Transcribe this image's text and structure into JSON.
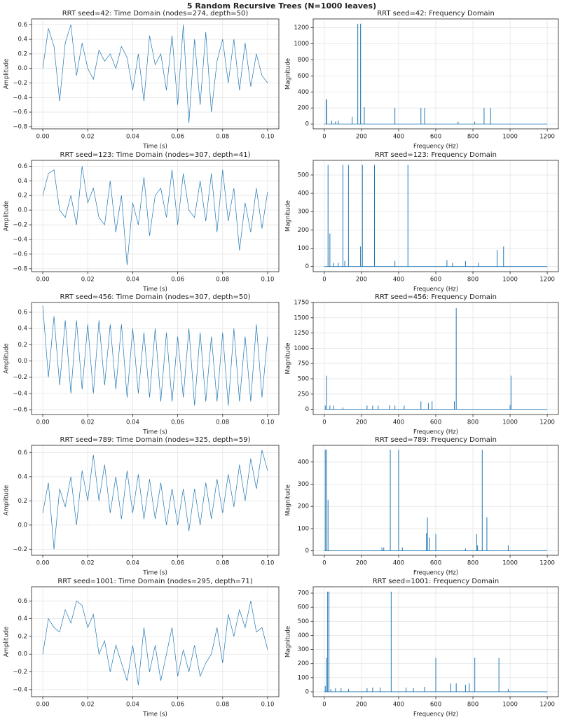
{
  "title": "5 Random Recursive Trees (N=1000 leaves)",
  "chart_data": [
    {
      "type": "line",
      "title": "RRT seed=42: Time Domain (nodes=274, depth=50)",
      "xlabel": "Time (s)",
      "ylabel": "Amplitude",
      "color": "#1f77b4",
      "grid": true,
      "x": [
        0,
        0.0025,
        0.005,
        0.0075,
        0.01,
        0.0125,
        0.015,
        0.0175,
        0.02,
        0.0225,
        0.025,
        0.0275,
        0.03,
        0.0325,
        0.035,
        0.0375,
        0.04,
        0.0425,
        0.045,
        0.0475,
        0.05,
        0.0525,
        0.055,
        0.0575,
        0.06,
        0.0625,
        0.065,
        0.0675,
        0.07,
        0.0725,
        0.075,
        0.0775,
        0.08,
        0.0825,
        0.085,
        0.0875,
        0.09,
        0.0925,
        0.095,
        0.0975,
        0.1
      ],
      "values": [
        0.0,
        0.55,
        0.3,
        -0.45,
        0.35,
        0.6,
        -0.1,
        0.35,
        0.0,
        -0.15,
        0.25,
        0.1,
        0.2,
        0.0,
        0.3,
        0.15,
        -0.3,
        0.2,
        -0.45,
        0.45,
        0.05,
        0.2,
        -0.3,
        0.45,
        -0.5,
        0.6,
        -0.75,
        0.4,
        -0.5,
        0.5,
        -0.6,
        0.1,
        0.4,
        -0.2,
        0.4,
        -0.3,
        0.35,
        -0.25,
        0.2,
        -0.1,
        -0.2
      ],
      "xlim": [
        -0.005,
        0.105
      ],
      "ylim": [
        -0.83,
        0.68
      ],
      "xticks": [
        {
          "value": 0,
          "label": "0.00"
        },
        {
          "value": 0.02,
          "label": "0.02"
        },
        {
          "value": 0.04,
          "label": "0.04"
        },
        {
          "value": 0.06,
          "label": "0.06"
        },
        {
          "value": 0.08,
          "label": "0.08"
        },
        {
          "value": 0.1,
          "label": "0.10"
        }
      ],
      "yticks": [
        {
          "value": -0.8,
          "label": "−0.8"
        },
        {
          "value": -0.6,
          "label": "−0.6"
        },
        {
          "value": -0.4,
          "label": "−0.4"
        },
        {
          "value": -0.2,
          "label": "−0.2"
        },
        {
          "value": 0,
          "label": "0.0"
        },
        0.2,
        0.4,
        0.6
      ]
    },
    {
      "type": "stem",
      "title": "RRT seed=42: Frequency Domain",
      "xlabel": "Frequency (Hz)",
      "ylabel": "Magnitude",
      "color": "#1f77b4",
      "grid": true,
      "x": [
        0,
        10,
        12,
        40,
        60,
        75,
        150,
        180,
        195,
        215,
        380,
        520,
        540,
        720,
        810,
        860,
        895,
        1200
      ],
      "values": [
        0,
        310,
        300,
        40,
        30,
        40,
        90,
        1250,
        1250,
        210,
        200,
        200,
        200,
        30,
        30,
        200,
        200,
        0
      ],
      "xlim": [
        -60,
        1260
      ],
      "ylim": [
        -60,
        1310
      ],
      "xticks": [
        0,
        200,
        400,
        600,
        800,
        1000,
        1200
      ],
      "yticks": [
        0,
        200,
        400,
        600,
        800,
        1000,
        1200
      ]
    },
    {
      "type": "line",
      "title": "RRT seed=123: Time Domain (nodes=307, depth=41)",
      "xlabel": "Time (s)",
      "ylabel": "Amplitude",
      "color": "#1f77b4",
      "grid": true,
      "x": [
        0,
        0.0025,
        0.005,
        0.0075,
        0.01,
        0.0125,
        0.015,
        0.0175,
        0.02,
        0.0225,
        0.025,
        0.0275,
        0.03,
        0.0325,
        0.035,
        0.0375,
        0.04,
        0.0425,
        0.045,
        0.0475,
        0.05,
        0.0525,
        0.055,
        0.0575,
        0.06,
        0.0625,
        0.065,
        0.0675,
        0.07,
        0.0725,
        0.075,
        0.0775,
        0.08,
        0.0825,
        0.085,
        0.0875,
        0.09,
        0.0925,
        0.095,
        0.0975,
        0.1
      ],
      "values": [
        0.2,
        0.5,
        0.55,
        0.0,
        -0.1,
        0.2,
        -0.2,
        0.6,
        0.1,
        0.3,
        -0.1,
        -0.2,
        0.4,
        -0.3,
        0.2,
        -0.75,
        0.1,
        -0.2,
        0.45,
        -0.35,
        0.2,
        0.3,
        -0.1,
        0.55,
        -0.2,
        0.5,
        0.0,
        -0.1,
        0.4,
        -0.15,
        0.5,
        -0.3,
        0.55,
        -0.15,
        0.3,
        -0.55,
        0.1,
        -0.3,
        0.3,
        -0.25,
        0.25
      ],
      "xlim": [
        -0.005,
        0.105
      ],
      "ylim": [
        -0.84,
        0.68
      ],
      "xticks": [
        {
          "value": 0,
          "label": "0.00"
        },
        {
          "value": 0.02,
          "label": "0.02"
        },
        {
          "value": 0.04,
          "label": "0.04"
        },
        {
          "value": 0.06,
          "label": "0.06"
        },
        {
          "value": 0.08,
          "label": "0.08"
        },
        {
          "value": 0.1,
          "label": "0.10"
        }
      ],
      "yticks": [
        {
          "value": -0.8,
          "label": "−0.8"
        },
        {
          "value": -0.6,
          "label": "−0.6"
        },
        {
          "value": -0.4,
          "label": "−0.4"
        },
        {
          "value": -0.2,
          "label": "−0.2"
        },
        {
          "value": 0,
          "label": "0.0"
        },
        0.2,
        0.4,
        0.6
      ]
    },
    {
      "type": "stem",
      "title": "RRT seed=123: Frequency Domain",
      "xlabel": "Frequency (Hz)",
      "ylabel": "Magnitude",
      "color": "#1f77b4",
      "grid": true,
      "x": [
        0,
        20,
        30,
        50,
        75,
        100,
        110,
        130,
        195,
        205,
        270,
        380,
        450,
        660,
        690,
        760,
        830,
        930,
        965,
        1200
      ],
      "values": [
        0,
        555,
        180,
        20,
        20,
        555,
        30,
        555,
        110,
        555,
        555,
        30,
        555,
        35,
        20,
        30,
        20,
        90,
        110,
        0
      ],
      "xlim": [
        -60,
        1260
      ],
      "ylim": [
        -28,
        580
      ],
      "xticks": [
        0,
        200,
        400,
        600,
        800,
        1000,
        1200
      ],
      "yticks": [
        0,
        100,
        200,
        300,
        400,
        500
      ]
    },
    {
      "type": "line",
      "title": "RRT seed=456: Time Domain (nodes=307, depth=50)",
      "xlabel": "Time (s)",
      "ylabel": "Amplitude",
      "color": "#1f77b4",
      "grid": true,
      "x": [
        0,
        0.0025,
        0.005,
        0.0075,
        0.01,
        0.0125,
        0.015,
        0.0175,
        0.02,
        0.0225,
        0.025,
        0.0275,
        0.03,
        0.0325,
        0.035,
        0.0375,
        0.04,
        0.0425,
        0.045,
        0.0475,
        0.05,
        0.0525,
        0.055,
        0.0575,
        0.06,
        0.0625,
        0.065,
        0.0675,
        0.07,
        0.0725,
        0.075,
        0.0775,
        0.08,
        0.0825,
        0.085,
        0.0875,
        0.09,
        0.0925,
        0.095,
        0.0975,
        0.1
      ],
      "values": [
        0.68,
        -0.2,
        0.55,
        -0.3,
        0.5,
        -0.4,
        0.5,
        -0.35,
        0.45,
        -0.4,
        0.5,
        -0.3,
        0.45,
        -0.35,
        0.45,
        -0.45,
        0.4,
        -0.4,
        0.35,
        -0.45,
        0.4,
        -0.5,
        0.35,
        -0.5,
        0.3,
        -0.45,
        0.4,
        -0.55,
        0.35,
        -0.5,
        0.3,
        -0.5,
        0.35,
        -0.55,
        0.4,
        -0.5,
        0.3,
        -0.5,
        0.45,
        -0.45,
        0.3
      ],
      "xlim": [
        -0.005,
        0.105
      ],
      "ylim": [
        -0.66,
        0.72
      ],
      "xticks": [
        {
          "value": 0,
          "label": "0.00"
        },
        {
          "value": 0.02,
          "label": "0.02"
        },
        {
          "value": 0.04,
          "label": "0.04"
        },
        {
          "value": 0.06,
          "label": "0.06"
        },
        {
          "value": 0.08,
          "label": "0.08"
        },
        {
          "value": 0.1,
          "label": "0.10"
        }
      ],
      "yticks": [
        {
          "value": -0.6,
          "label": "−0.6"
        },
        {
          "value": -0.4,
          "label": "−0.4"
        },
        {
          "value": -0.2,
          "label": "−0.2"
        },
        {
          "value": 0,
          "label": "0.0"
        },
        0.2,
        0.4,
        0.6
      ]
    },
    {
      "type": "stem",
      "title": "RRT seed=456: Frequency Domain",
      "xlabel": "Frequency (Hz)",
      "ylabel": "Magnitude",
      "color": "#1f77b4",
      "grid": true,
      "x": [
        0,
        5,
        12,
        30,
        50,
        100,
        230,
        260,
        290,
        350,
        380,
        430,
        520,
        560,
        580,
        700,
        710,
        1000,
        1005,
        1200
      ],
      "values": [
        0,
        60,
        550,
        60,
        60,
        30,
        60,
        60,
        60,
        70,
        60,
        60,
        130,
        100,
        130,
        130,
        1660,
        70,
        550,
        0
      ],
      "xlim": [
        -60,
        1260
      ],
      "ylim": [
        -85,
        1750
      ],
      "xticks": [
        0,
        200,
        400,
        600,
        800,
        1000,
        1200
      ],
      "yticks": [
        0,
        250,
        500,
        750,
        1000,
        1250,
        1500,
        1750
      ]
    },
    {
      "type": "line",
      "title": "RRT seed=789: Time Domain (nodes=325, depth=59)",
      "xlabel": "Time (s)",
      "ylabel": "Amplitude",
      "color": "#1f77b4",
      "grid": true,
      "x": [
        0,
        0.0025,
        0.005,
        0.0075,
        0.01,
        0.0125,
        0.015,
        0.0175,
        0.02,
        0.0225,
        0.025,
        0.0275,
        0.03,
        0.0325,
        0.035,
        0.0375,
        0.04,
        0.0425,
        0.045,
        0.0475,
        0.05,
        0.0525,
        0.055,
        0.0575,
        0.06,
        0.0625,
        0.065,
        0.0675,
        0.07,
        0.0725,
        0.075,
        0.0775,
        0.08,
        0.0825,
        0.085,
        0.0875,
        0.09,
        0.0925,
        0.095,
        0.0975,
        0.1
      ],
      "values": [
        0.1,
        0.35,
        -0.2,
        0.3,
        0.15,
        0.4,
        0.0,
        0.45,
        0.2,
        0.58,
        0.2,
        0.5,
        0.1,
        0.4,
        0.05,
        0.45,
        0.1,
        0.42,
        0.05,
        0.38,
        0.05,
        0.35,
        0.0,
        0.3,
        0.0,
        0.3,
        -0.05,
        0.3,
        0.0,
        0.35,
        0.05,
        0.38,
        0.1,
        0.42,
        0.15,
        0.5,
        0.2,
        0.55,
        0.3,
        0.62,
        0.45
      ],
      "xlim": [
        -0.005,
        0.105
      ],
      "ylim": [
        -0.25,
        0.66
      ],
      "xticks": [
        {
          "value": 0,
          "label": "0.00"
        },
        {
          "value": 0.02,
          "label": "0.02"
        },
        {
          "value": 0.04,
          "label": "0.04"
        },
        {
          "value": 0.06,
          "label": "0.06"
        },
        {
          "value": 0.08,
          "label": "0.08"
        },
        {
          "value": 0.1,
          "label": "0.10"
        }
      ],
      "yticks": [
        {
          "value": -0.2,
          "label": "−0.2"
        },
        {
          "value": 0,
          "label": "0.0"
        },
        0.2,
        0.4,
        0.6
      ]
    },
    {
      "type": "stem",
      "title": "RRT seed=789: Frequency Domain",
      "xlabel": "Frequency (Hz)",
      "ylabel": "Magnitude",
      "color": "#1f77b4",
      "grid": true,
      "x": [
        0,
        5,
        12,
        20,
        310,
        320,
        355,
        400,
        420,
        550,
        555,
        565,
        600,
        760,
        820,
        825,
        850,
        875,
        990,
        1200
      ],
      "values": [
        0,
        455,
        455,
        230,
        15,
        15,
        455,
        455,
        15,
        80,
        150,
        60,
        75,
        10,
        75,
        25,
        455,
        150,
        25,
        0
      ],
      "xlim": [
        -60,
        1260
      ],
      "ylim": [
        -20,
        475
      ],
      "xticks": [
        0,
        200,
        400,
        600,
        800,
        1000,
        1200
      ],
      "yticks": [
        0,
        100,
        200,
        300,
        400
      ]
    },
    {
      "type": "line",
      "title": "RRT seed=1001: Time Domain (nodes=295, depth=71)",
      "xlabel": "Time (s)",
      "ylabel": "Amplitude",
      "color": "#1f77b4",
      "grid": true,
      "x": [
        0,
        0.0025,
        0.005,
        0.0075,
        0.01,
        0.0125,
        0.015,
        0.0175,
        0.02,
        0.0225,
        0.025,
        0.0275,
        0.03,
        0.0325,
        0.035,
        0.0375,
        0.04,
        0.0425,
        0.045,
        0.0475,
        0.05,
        0.0525,
        0.055,
        0.0575,
        0.06,
        0.0625,
        0.065,
        0.0675,
        0.07,
        0.0725,
        0.075,
        0.0775,
        0.08,
        0.0825,
        0.085,
        0.0875,
        0.09,
        0.0925,
        0.095,
        0.0975,
        0.1
      ],
      "values": [
        0.0,
        0.4,
        0.3,
        0.25,
        0.5,
        0.35,
        0.6,
        0.55,
        0.3,
        0.45,
        0.0,
        0.15,
        -0.2,
        0.1,
        -0.1,
        -0.3,
        0.1,
        -0.35,
        0.3,
        -0.2,
        0.1,
        -0.3,
        0.0,
        0.3,
        -0.25,
        0.05,
        -0.2,
        0.1,
        -0.25,
        -0.1,
        0.0,
        0.3,
        -0.1,
        0.45,
        0.2,
        0.5,
        0.3,
        0.6,
        0.25,
        0.3,
        0.05
      ],
      "xlim": [
        -0.005,
        0.105
      ],
      "ylim": [
        -0.48,
        0.76
      ],
      "xticks": [
        {
          "value": 0,
          "label": "0.00"
        },
        {
          "value": 0.02,
          "label": "0.02"
        },
        {
          "value": 0.04,
          "label": "0.04"
        },
        {
          "value": 0.06,
          "label": "0.06"
        },
        {
          "value": 0.08,
          "label": "0.08"
        },
        {
          "value": 0.1,
          "label": "0.10"
        }
      ],
      "yticks": [
        {
          "value": -0.4,
          "label": "−0.4"
        },
        {
          "value": -0.2,
          "label": "−0.2"
        },
        {
          "value": 0,
          "label": "0.0"
        },
        0.2,
        0.4,
        0.6
      ]
    },
    {
      "type": "stem",
      "title": "RRT seed=1001: Frequency Domain",
      "xlabel": "Frequency (Hz)",
      "ylabel": "Magnitude",
      "color": "#1f77b4",
      "grid": true,
      "x": [
        0,
        5,
        12,
        18,
        25,
        35,
        60,
        90,
        130,
        230,
        260,
        300,
        360,
        440,
        480,
        540,
        600,
        680,
        710,
        760,
        780,
        810,
        940,
        990,
        1200
      ],
      "values": [
        0,
        40,
        240,
        710,
        710,
        20,
        25,
        25,
        20,
        25,
        30,
        30,
        710,
        30,
        25,
        35,
        240,
        60,
        60,
        50,
        60,
        240,
        240,
        20,
        0
      ],
      "xlim": [
        -60,
        1260
      ],
      "ylim": [
        -35,
        745
      ],
      "xticks": [
        0,
        200,
        400,
        600,
        800,
        1000,
        1200
      ],
      "yticks": [
        0,
        100,
        200,
        300,
        400,
        500,
        600,
        700
      ]
    }
  ]
}
